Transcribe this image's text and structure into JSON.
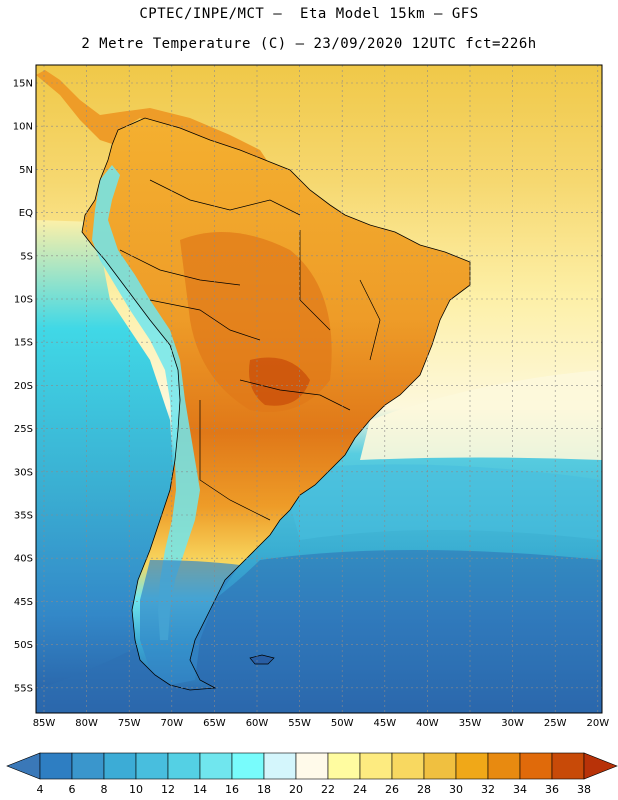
{
  "header": {
    "line1": "CPTEC/INPE/MCT –  Eta Model 15km – GFS",
    "line2": "2 Metre Temperature (C) – 23/09/2020 12UTC fct=226h"
  },
  "map": {
    "lat_labels": [
      "15N",
      "10N",
      "5N",
      "EQ",
      "5S",
      "10S",
      "15S",
      "20S",
      "25S",
      "30S",
      "35S",
      "40S",
      "45S",
      "50S",
      "55S"
    ],
    "lon_labels": [
      "85W",
      "80W",
      "75W",
      "70W",
      "65W",
      "60W",
      "55W",
      "50W",
      "45W",
      "40W",
      "35W",
      "30W",
      "25W",
      "20W"
    ],
    "ocean_colors": {
      "tropical_north": "#f0c848",
      "tropical_warm": "#f6d870",
      "subtropical": "#fdf0a8",
      "transition": "#fdf8dc",
      "cool_1": "#40d8e6",
      "cool_2": "#58cde0",
      "cool_3": "#3aaed2",
      "cold_1": "#3388c8",
      "cold_2": "#2d6fb2",
      "cold_3": "#285ea4"
    },
    "land_colors": {
      "hot": "#e07818",
      "warm": "#ee9c28",
      "mild": "#f4b030",
      "andes": "#78e8f0",
      "patagonia": "#3aa8d4"
    }
  },
  "colorbar": {
    "labels": [
      "4",
      "6",
      "8",
      "10",
      "12",
      "14",
      "16",
      "18",
      "20",
      "22",
      "24",
      "26",
      "28",
      "30",
      "32",
      "34",
      "36",
      "38"
    ],
    "colors": [
      "#3a78b8",
      "#2e7ec2",
      "#3a96cc",
      "#3cacd6",
      "#48bede",
      "#54d0e4",
      "#70e6ee",
      "#78fcfc",
      "#d4f6fc",
      "#fffaea",
      "#fffca0",
      "#fdeb80",
      "#f8d860",
      "#f0c040",
      "#f0a818",
      "#e88a10",
      "#e06a0a",
      "#c84a08",
      "#b83208"
    ]
  }
}
